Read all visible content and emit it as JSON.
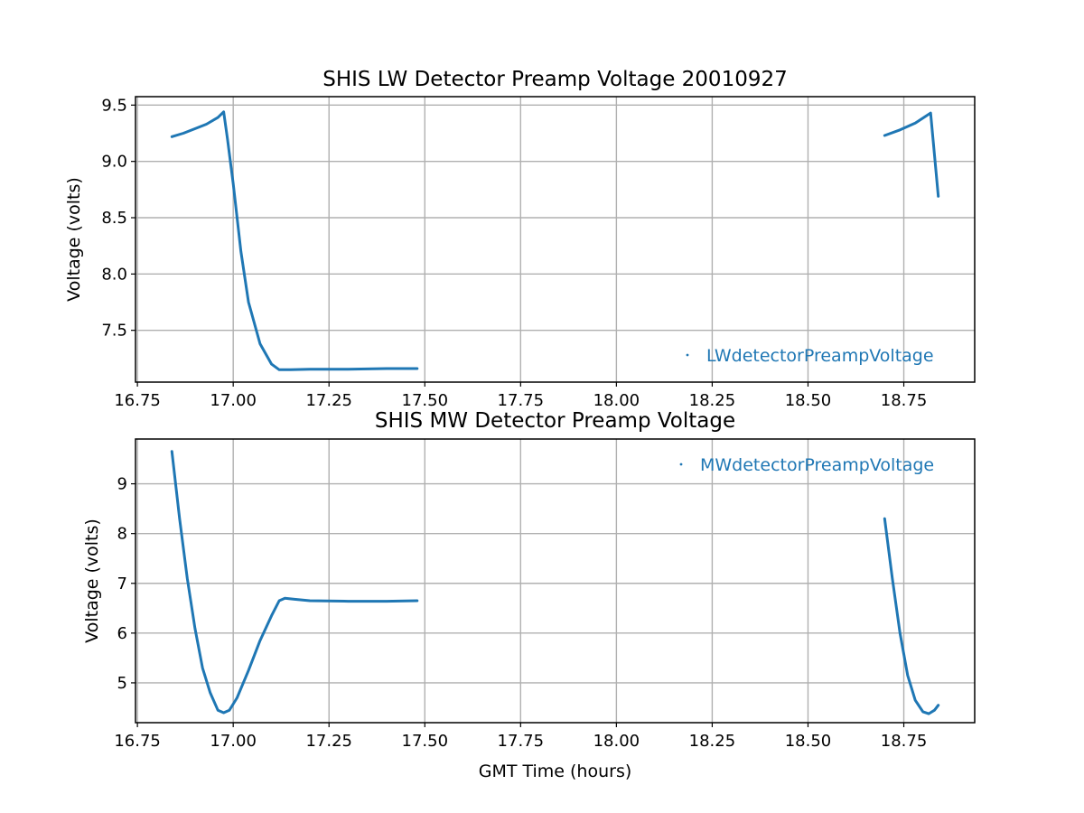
{
  "chart_data": [
    {
      "type": "line",
      "title": "SHIS LW Detector Preamp Voltage 20010927",
      "xlabel": "",
      "ylabel": "Voltage (volts)",
      "xlim": [
        16.745,
        18.935
      ],
      "ylim": [
        7.04,
        9.575
      ],
      "xticks": [
        16.75,
        17.0,
        17.25,
        17.5,
        17.75,
        18.0,
        18.25,
        18.5,
        18.75
      ],
      "xtick_labels": [
        "16.75",
        "17.00",
        "17.25",
        "17.50",
        "17.75",
        "18.00",
        "18.25",
        "18.50",
        "18.75"
      ],
      "yticks": [
        7.5,
        8.0,
        8.5,
        9.0,
        9.5
      ],
      "ytick_labels": [
        "7.5",
        "8.0",
        "8.5",
        "9.0",
        "9.5"
      ],
      "grid": true,
      "legend_position": "lower-right",
      "color": "#1f77b4",
      "series": [
        {
          "name": "LWdetectorPreampVoltage",
          "segments": [
            [
              [
                16.84,
                9.22
              ],
              [
                16.87,
                9.25
              ],
              [
                16.9,
                9.29
              ],
              [
                16.93,
                9.33
              ],
              [
                16.96,
                9.39
              ],
              [
                16.975,
                9.44
              ],
              [
                16.985,
                9.2
              ],
              [
                17.0,
                8.8
              ],
              [
                17.02,
                8.2
              ],
              [
                17.04,
                7.75
              ],
              [
                17.07,
                7.38
              ],
              [
                17.1,
                7.2
              ],
              [
                17.12,
                7.15
              ],
              [
                17.15,
                7.15
              ],
              [
                17.2,
                7.155
              ],
              [
                17.3,
                7.155
              ],
              [
                17.4,
                7.16
              ],
              [
                17.48,
                7.16
              ]
            ],
            [
              [
                18.7,
                9.23
              ],
              [
                18.74,
                9.28
              ],
              [
                18.78,
                9.34
              ],
              [
                18.82,
                9.43
              ],
              [
                18.84,
                8.69
              ]
            ]
          ]
        }
      ]
    },
    {
      "type": "line",
      "title": "SHIS MW Detector Preamp Voltage",
      "xlabel": "GMT Time (hours)",
      "ylabel": "Voltage (volts)",
      "xlim": [
        16.745,
        18.935
      ],
      "ylim": [
        4.2,
        9.9
      ],
      "xticks": [
        16.75,
        17.0,
        17.25,
        17.5,
        17.75,
        18.0,
        18.25,
        18.5,
        18.75
      ],
      "xtick_labels": [
        "16.75",
        "17.00",
        "17.25",
        "17.50",
        "17.75",
        "18.00",
        "18.25",
        "18.50",
        "18.75"
      ],
      "yticks": [
        5,
        6,
        7,
        8,
        9
      ],
      "ytick_labels": [
        "5",
        "6",
        "7",
        "8",
        "9"
      ],
      "grid": true,
      "legend_position": "upper-right",
      "color": "#1f77b4",
      "series": [
        {
          "name": "MWdetectorPreampVoltage",
          "segments": [
            [
              [
                16.84,
                9.65
              ],
              [
                16.86,
                8.3
              ],
              [
                16.88,
                7.1
              ],
              [
                16.9,
                6.1
              ],
              [
                16.92,
                5.3
              ],
              [
                16.94,
                4.8
              ],
              [
                16.96,
                4.45
              ],
              [
                16.975,
                4.4
              ],
              [
                16.99,
                4.45
              ],
              [
                17.01,
                4.7
              ],
              [
                17.04,
                5.25
              ],
              [
                17.07,
                5.85
              ],
              [
                17.1,
                6.35
              ],
              [
                17.12,
                6.65
              ],
              [
                17.135,
                6.7
              ],
              [
                17.16,
                6.68
              ],
              [
                17.2,
                6.65
              ],
              [
                17.3,
                6.64
              ],
              [
                17.4,
                6.64
              ],
              [
                17.48,
                6.65
              ]
            ],
            [
              [
                18.7,
                8.3
              ],
              [
                18.72,
                7.1
              ],
              [
                18.74,
                6.0
              ],
              [
                18.76,
                5.15
              ],
              [
                18.78,
                4.65
              ],
              [
                18.8,
                4.42
              ],
              [
                18.815,
                4.38
              ],
              [
                18.83,
                4.45
              ],
              [
                18.84,
                4.55
              ]
            ]
          ]
        }
      ]
    }
  ]
}
